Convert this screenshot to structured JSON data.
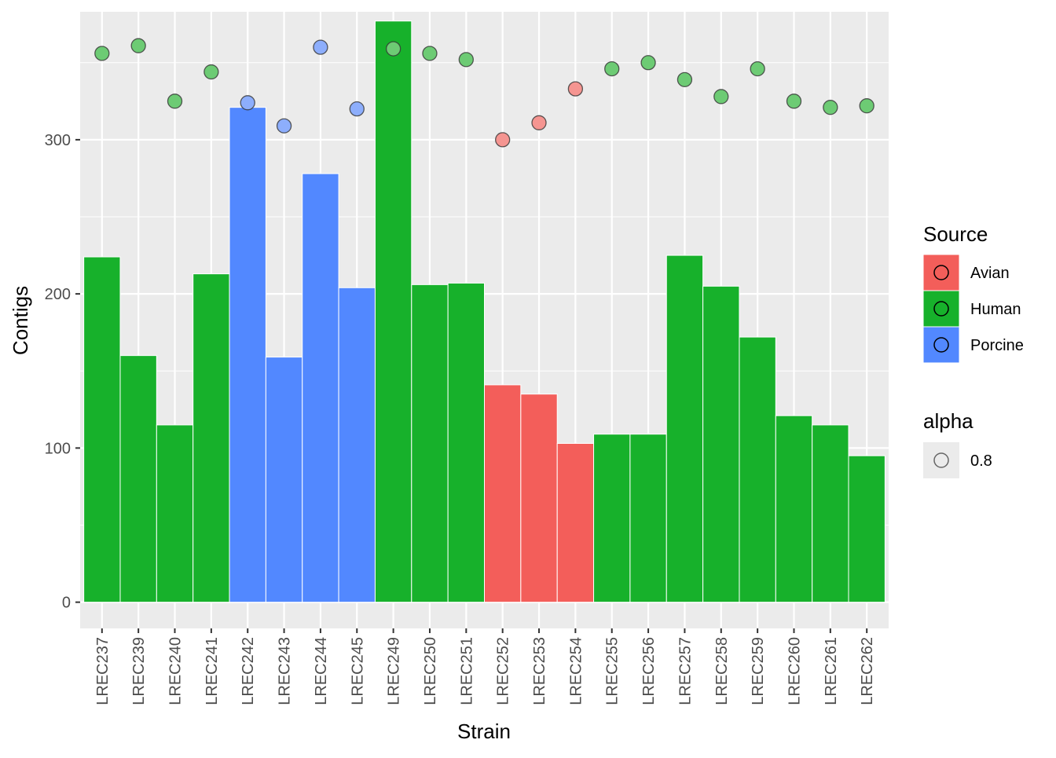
{
  "chart_data": {
    "type": "bar",
    "title": "",
    "xlabel": "Strain",
    "ylabel": "Contigs",
    "ylim": [
      -17,
      383
    ],
    "yticks": [
      0,
      100,
      200,
      300
    ],
    "grid": true,
    "legend_placement": "right",
    "categories": [
      "LREC237",
      "LREC239",
      "LREC240",
      "LREC241",
      "LREC242",
      "LREC243",
      "LREC244",
      "LREC245",
      "LREC249",
      "LREC250",
      "LREC251",
      "LREC252",
      "LREC253",
      "LREC254",
      "LREC255",
      "LREC256",
      "LREC257",
      "LREC258",
      "LREC259",
      "LREC260",
      "LREC261",
      "LREC262"
    ],
    "source": [
      "Human",
      "Human",
      "Human",
      "Human",
      "Porcine",
      "Porcine",
      "Porcine",
      "Porcine",
      "Human",
      "Human",
      "Human",
      "Avian",
      "Avian",
      "Avian",
      "Human",
      "Human",
      "Human",
      "Human",
      "Human",
      "Human",
      "Human",
      "Human"
    ],
    "bar_values": [
      224,
      160,
      115,
      213,
      321,
      159,
      278,
      204,
      377,
      206,
      207,
      141,
      135,
      103,
      109,
      109,
      225,
      205,
      172,
      121,
      115,
      95
    ],
    "point_values": [
      356,
      361,
      325,
      344,
      324,
      309,
      360,
      320,
      359,
      356,
      352,
      300,
      311,
      333,
      346,
      350,
      339,
      328,
      346,
      325,
      321,
      322
    ],
    "legend": {
      "source_title": "Source",
      "source_entries": [
        {
          "label": "Avian",
          "color": "#F35E5A"
        },
        {
          "label": "Human",
          "color": "#17B12B"
        },
        {
          "label": "Porcine",
          "color": "#5288FF"
        }
      ],
      "alpha_title": "alpha",
      "alpha_entries": [
        "0.8"
      ]
    },
    "point_colors": {
      "Avian": "#F59591",
      "Human": "#6DCB74",
      "Porcine": "#8DAEFC"
    }
  }
}
